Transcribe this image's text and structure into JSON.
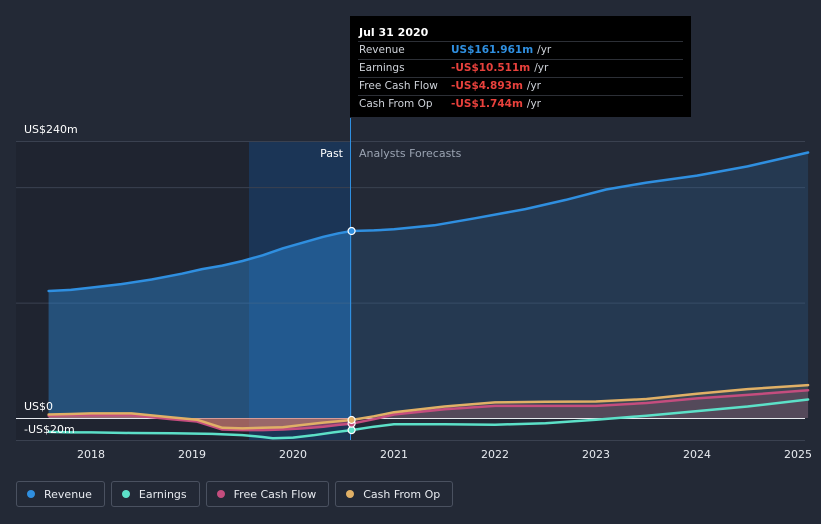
{
  "chart_data": {
    "type": "line",
    "x_ticks": [
      "2018",
      "2019",
      "2020",
      "2021",
      "2022",
      "2023",
      "2024",
      "2025"
    ],
    "y_ticks": [
      "US$240m",
      "US$0",
      "-US$20m"
    ],
    "ylim": [
      -20,
      240
    ],
    "xlim": [
      2017.6,
      2025.1
    ],
    "past_label": "Past",
    "forecast_label": "Analysts Forecasts",
    "divider_x": 2020.58,
    "grid": true,
    "legend_position": "bottom-left",
    "series": [
      {
        "name": "Revenue",
        "color": "#2f8fe0",
        "x": [
          2017.58,
          2017.8,
          2018.0,
          2018.3,
          2018.6,
          2018.9,
          2019.1,
          2019.3,
          2019.5,
          2019.7,
          2019.9,
          2020.1,
          2020.3,
          2020.45,
          2020.58,
          2020.8,
          2021.0,
          2021.4,
          2021.8,
          2022.3,
          2022.7,
          2023.1,
          2023.5,
          2024.0,
          2024.5,
          2025.1
        ],
        "y": [
          110,
          111,
          113,
          116,
          120,
          125,
          129,
          132,
          136,
          141,
          147,
          152,
          157,
          160,
          162,
          162.5,
          163.5,
          167,
          173,
          181,
          189,
          198,
          204,
          210,
          218,
          230
        ]
      },
      {
        "name": "Earnings",
        "color": "#5ce0c8",
        "x": [
          2017.58,
          2017.8,
          2018.0,
          2018.4,
          2018.8,
          2019.2,
          2019.5,
          2019.7,
          2019.8,
          2020.0,
          2020.2,
          2020.4,
          2020.58,
          2020.8,
          2021.0,
          2021.5,
          2022.0,
          2022.5,
          2023.0,
          2023.5,
          2024.0,
          2024.5,
          2025.1
        ],
        "y": [
          -12,
          -12.5,
          -12.5,
          -13,
          -13.2,
          -13.8,
          -14.8,
          -16.5,
          -17.5,
          -17,
          -15,
          -12.5,
          -10.5,
          -7.5,
          -5.5,
          -5.5,
          -5.8,
          -4.5,
          -1.5,
          2,
          6,
          10,
          16
        ]
      },
      {
        "name": "Free Cash Flow",
        "color": "#c44d7e",
        "x": [
          2017.58,
          2017.8,
          2018.0,
          2018.4,
          2018.8,
          2019.05,
          2019.3,
          2019.5,
          2019.7,
          2019.9,
          2020.1,
          2020.3,
          2020.45,
          2020.58,
          2020.8,
          2021.0,
          2021.5,
          2022.0,
          2022.5,
          2023.0,
          2023.5,
          2024.0,
          2024.5,
          2025.1
        ],
        "y": [
          2,
          2.5,
          2.5,
          2.5,
          -1,
          -3,
          -10,
          -10.5,
          -10.5,
          -10,
          -9,
          -7.5,
          -6,
          -4.9,
          -1,
          3,
          7.5,
          10.5,
          10.5,
          10.5,
          13,
          17,
          20,
          24
        ]
      },
      {
        "name": "Cash From Op",
        "color": "#e0b066",
        "x": [
          2017.58,
          2017.8,
          2018.0,
          2018.4,
          2018.8,
          2019.05,
          2019.3,
          2019.5,
          2019.7,
          2019.9,
          2020.1,
          2020.3,
          2020.45,
          2020.58,
          2020.8,
          2021.0,
          2021.5,
          2022.0,
          2022.5,
          2023.0,
          2023.5,
          2024.0,
          2024.5,
          2025.1
        ],
        "y": [
          3,
          3.5,
          4,
          4,
          0.5,
          -1.5,
          -8.5,
          -9,
          -8.5,
          -8,
          -6,
          -4,
          -2.8,
          -1.7,
          1.5,
          5,
          10,
          13.5,
          14,
          14.3,
          16.5,
          21,
          25,
          28.5
        ]
      }
    ],
    "tooltip": {
      "date": "Jul 31 2020",
      "rows": [
        {
          "name": "Revenue",
          "value": "US$161.961m",
          "unit": "/yr",
          "color": "#2f8fe0"
        },
        {
          "name": "Earnings",
          "value": "-US$10.511m",
          "unit": "/yr",
          "color": "#e8413c"
        },
        {
          "name": "Free Cash Flow",
          "value": "-US$4.893m",
          "unit": "/yr",
          "color": "#e8413c"
        },
        {
          "name": "Cash From Op",
          "value": "-US$1.744m",
          "unit": "/yr",
          "color": "#e8413c"
        }
      ]
    }
  },
  "legend": [
    {
      "label": "Revenue",
      "color": "#2f8fe0"
    },
    {
      "label": "Earnings",
      "color": "#5ce0c8"
    },
    {
      "label": "Free Cash Flow",
      "color": "#c44d7e"
    },
    {
      "label": "Cash From Op",
      "color": "#e0b066"
    }
  ]
}
